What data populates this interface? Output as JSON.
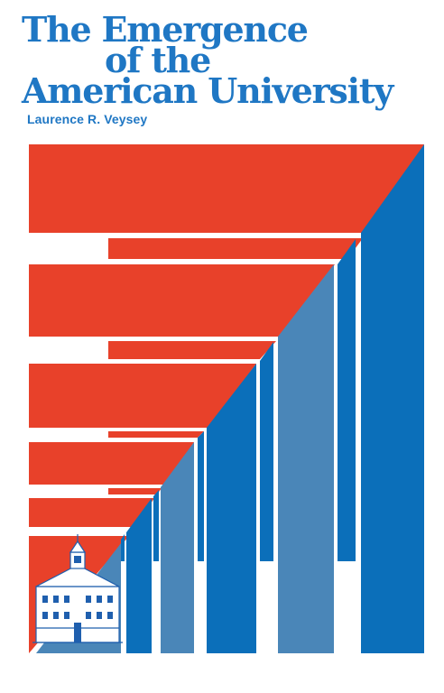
{
  "book": {
    "title_line1": "The Emergence",
    "title_line2": "of the",
    "title_line3": "American University",
    "author": "Laurence R. Veysey"
  },
  "colors": {
    "red": "#e8412a",
    "blue": "#0b6fba",
    "steel_blue": "#4a86b8",
    "title_blue": "#1f77c4",
    "background": "#ffffff"
  },
  "icons": {
    "illustration": "university-hall-engraving"
  }
}
